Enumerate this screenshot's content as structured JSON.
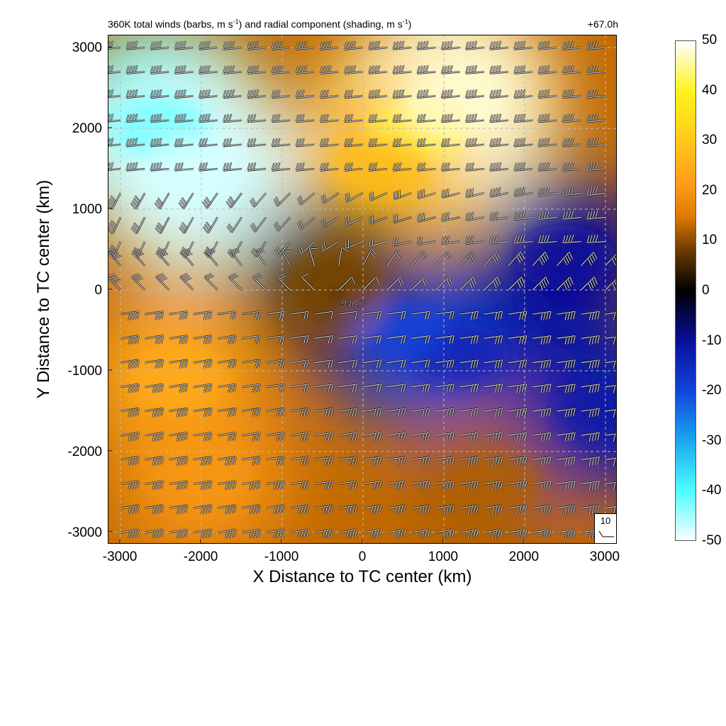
{
  "chart_data": {
    "type": "heatmap",
    "title": "360K total winds (barbs, m s-1) and radial component (shading, m s-1)",
    "title_parts": {
      "main": "360K total winds (barbs, m s",
      "sup1": "-1",
      "mid": ") and radial component (shading, m s",
      "sup2": "-1",
      "end": ")"
    },
    "time_label": "+67.0h",
    "xlabel": "X Distance to TC center (km)",
    "ylabel": "Y Distance to TC center (km)",
    "xlim": [
      -3150,
      3150
    ],
    "ylim": [
      -3150,
      3150
    ],
    "xticks": [
      -3000,
      -2000,
      -1000,
      0,
      1000,
      2000,
      3000
    ],
    "yticks": [
      -3000,
      -2000,
      -1000,
      0,
      1000,
      2000,
      3000
    ],
    "grid": true,
    "colorbar": {
      "min": -50,
      "max": 50,
      "ticks": [
        50,
        40,
        30,
        20,
        10,
        0,
        -10,
        -20,
        -30,
        -40,
        -50
      ],
      "stops": [
        {
          "value": -50,
          "color": "#f8ffff"
        },
        {
          "value": -40,
          "color": "#4dfcff"
        },
        {
          "value": -30,
          "color": "#1aa6f0"
        },
        {
          "value": -20,
          "color": "#1144dd"
        },
        {
          "value": -10,
          "color": "#0a0f99"
        },
        {
          "value": 0,
          "color": "#000000"
        },
        {
          "value": 8,
          "color": "#6b3a00"
        },
        {
          "value": 15,
          "color": "#e07b00"
        },
        {
          "value": 22,
          "color": "#ff9f1a"
        },
        {
          "value": 32,
          "color": "#ffd21a"
        },
        {
          "value": 40,
          "color": "#fff21f"
        },
        {
          "value": 50,
          "color": "#ffffff"
        }
      ]
    },
    "field_regions": [
      {
        "name": "northwest-inflow",
        "x": -2500,
        "y": 2000,
        "value": -42
      },
      {
        "name": "northwest-inflow-core",
        "x": -2100,
        "y": 1500,
        "value": -48
      },
      {
        "name": "north-outflow",
        "x": 700,
        "y": 2000,
        "value": 42
      },
      {
        "name": "north-outflow-core",
        "x": 1100,
        "y": 2300,
        "value": 48
      },
      {
        "name": "north-outflow-band",
        "x": 200,
        "y": 1500,
        "value": 28
      },
      {
        "name": "southwest-outflow",
        "x": -2300,
        "y": -1100,
        "value": 24
      },
      {
        "name": "southwest-outflow-band",
        "x": -2000,
        "y": -2300,
        "value": 20
      },
      {
        "name": "east-inflow",
        "x": 1200,
        "y": -800,
        "value": -14
      },
      {
        "name": "east-inflow-core",
        "x": 400,
        "y": -500,
        "value": -20
      },
      {
        "name": "east-inflow-band",
        "x": 2500,
        "y": 400,
        "value": -10
      },
      {
        "name": "southeast-mixed",
        "x": 1600,
        "y": -2400,
        "value": 12
      },
      {
        "name": "far-east",
        "x": 3000,
        "y": -1500,
        "value": -12
      },
      {
        "name": "center-rings",
        "x": -400,
        "y": 100,
        "value": 6
      }
    ],
    "center": {
      "x": -400,
      "y": 0,
      "pressure_label": "940.7"
    },
    "barb_reference": {
      "speed": 10,
      "label": "10"
    },
    "barb_spacing_km": 300
  }
}
